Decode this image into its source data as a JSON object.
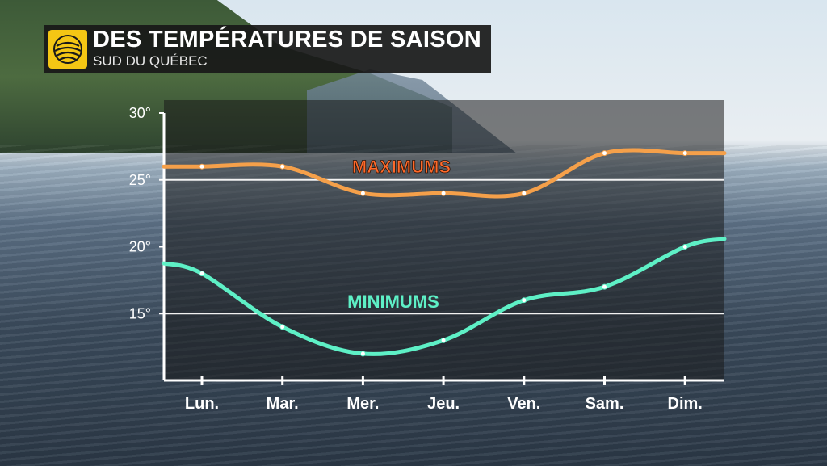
{
  "header": {
    "title": "DES TEMPÉRATURES DE SAISON",
    "subtitle": "SUD DU QUÉBEC",
    "logo_icon": "sun-stripes-logo"
  },
  "colors": {
    "max_line": "#f5a04a",
    "min_line": "#5ef0c6",
    "max_label": "#ff6a2a",
    "min_label": "#5ef0c6",
    "logo": "#f4c614"
  },
  "chart_data": {
    "type": "line",
    "categories": [
      "Lun.",
      "Mar.",
      "Mer.",
      "Jeu.",
      "Ven.",
      "Sam.",
      "Dim."
    ],
    "series": [
      {
        "name": "MAXIMUMS",
        "values": [
          26,
          26,
          24,
          24,
          24,
          27,
          27
        ]
      },
      {
        "name": "MINIMUMS",
        "values": [
          18,
          14,
          12,
          13,
          16,
          17,
          20
        ]
      }
    ],
    "ylim": [
      10,
      30
    ],
    "yticks": [
      "30°",
      "25°",
      "20°",
      "15°"
    ],
    "ytick_values": [
      30,
      25,
      20,
      15
    ],
    "reference_lines": [
      25,
      15
    ],
    "title": "",
    "xlabel": "",
    "ylabel": "",
    "grid": false,
    "legend": "inline labels"
  }
}
